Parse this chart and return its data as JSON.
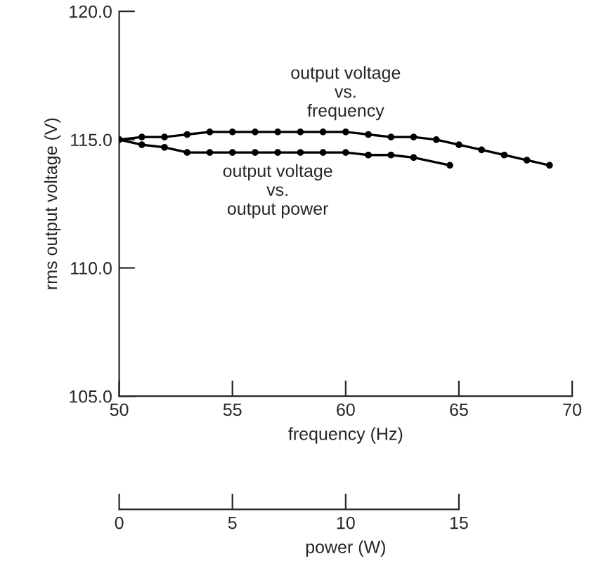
{
  "chart_data": {
    "type": "line",
    "ylabel": "rms output voltage (V)",
    "xlabel": "frequency (Hz)",
    "x2label": "power (W)",
    "xlim": [
      50,
      70
    ],
    "xticks": [
      50,
      55,
      60,
      65,
      70
    ],
    "x2lim": [
      0,
      20
    ],
    "x2ticks": [
      0,
      5,
      10,
      15
    ],
    "ylim": [
      105,
      120
    ],
    "yticks": [
      {
        "value": 105,
        "label": "105.0"
      },
      {
        "value": 110,
        "label": "110.0"
      },
      {
        "value": 115,
        "label": "115.0"
      },
      {
        "value": 120,
        "label": "120.0"
      }
    ],
    "marker": "circle",
    "line_style": "solid",
    "grid": false,
    "legend": false,
    "series": [
      {
        "name": "output voltage\nvs.\nfrequency",
        "color": "#000000",
        "x": [
          50,
          51,
          52,
          53,
          54,
          55,
          56,
          57,
          58,
          59,
          60,
          61,
          62,
          63,
          64,
          65,
          66,
          67,
          68,
          69
        ],
        "values": [
          115.0,
          115.1,
          115.1,
          115.2,
          115.3,
          115.3,
          115.3,
          115.3,
          115.3,
          115.3,
          115.3,
          115.2,
          115.1,
          115.1,
          115.0,
          114.8,
          114.6,
          114.4,
          114.2,
          114.0
        ]
      },
      {
        "name": "output voltage\nvs.\noutput power",
        "color": "#000000",
        "axis": "x2",
        "x": [
          0,
          1,
          2,
          3,
          4,
          5,
          6,
          7,
          8,
          9,
          10,
          11,
          12,
          13,
          14.6
        ],
        "values": [
          115.0,
          114.8,
          114.7,
          114.5,
          114.5,
          114.5,
          114.5,
          114.5,
          114.5,
          114.5,
          114.5,
          114.4,
          114.4,
          114.3,
          114.0
        ]
      }
    ]
  }
}
